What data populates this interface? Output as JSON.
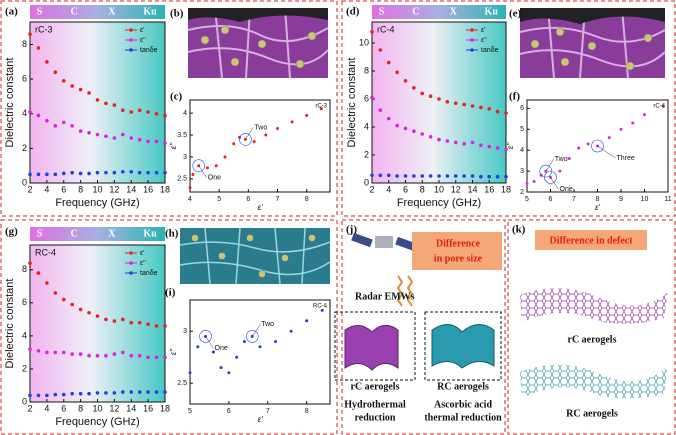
{
  "panels": {
    "a": "(a)",
    "b": "(b)",
    "c": "(c)",
    "d": "(d)",
    "e": "(e)",
    "f": "(f)",
    "g": "(g)",
    "h": "(h)",
    "i": "(i)",
    "j": "(j)",
    "k": "(k)"
  },
  "j": {
    "title": [
      "Difference",
      "in pore size"
    ],
    "radar": "Radar EMWs",
    "left": "rC aerogels",
    "right": "RC aerogels",
    "left_method": [
      "Hydrothermal",
      "reduction"
    ],
    "right_method": [
      "Ascorbic acid",
      "thermal reduction"
    ]
  },
  "k": {
    "title": "Difference in defect",
    "top": "rC aerogels",
    "bottom": "RC aerogels"
  },
  "chart_data": [
    {
      "type": "line",
      "label": "rC-3",
      "bands": [
        "S",
        "C",
        "X",
        "Ku"
      ],
      "x_label": "Frequency (GHz)",
      "y_label": "Dielectric constant",
      "x": [
        2,
        3,
        4,
        5,
        6,
        7,
        8,
        9,
        10,
        11,
        12,
        13,
        14,
        15,
        16,
        17,
        18
      ],
      "xlim": [
        2,
        18
      ],
      "xticks": [
        2,
        4,
        6,
        8,
        10,
        12,
        14,
        16,
        18
      ],
      "ylim": [
        0,
        9.3
      ],
      "yticks": [
        0,
        2,
        4,
        6,
        8
      ],
      "series": [
        {
          "name": "ε'",
          "color": "#e8221c",
          "values": [
            8.6,
            7.8,
            7.0,
            6.4,
            5.9,
            5.6,
            5.4,
            5.2,
            4.8,
            4.6,
            4.5,
            4.2,
            4.1,
            4.2,
            4.1,
            4.0,
            3.9
          ]
        },
        {
          "name": "ε''",
          "color": "#e020e0",
          "values": [
            4.1,
            3.9,
            3.6,
            3.3,
            3.5,
            3.3,
            3.0,
            2.9,
            2.8,
            2.7,
            2.6,
            2.8,
            2.6,
            2.5,
            2.4,
            2.4,
            2.3
          ]
        },
        {
          "name": "tanδe",
          "color": "#2040e0",
          "values": [
            0.5,
            0.5,
            0.5,
            0.5,
            0.55,
            0.6,
            0.55,
            0.55,
            0.6,
            0.6,
            0.6,
            0.65,
            0.65,
            0.6,
            0.6,
            0.6,
            0.6
          ]
        }
      ]
    },
    {
      "type": "scatter",
      "label": "rC-3",
      "x_label": "ε'",
      "y_label": "ε''",
      "annotations": [
        "One",
        "Two"
      ],
      "x": [
        4.0,
        4.1,
        4.3,
        4.6,
        4.9,
        5.2,
        5.5,
        5.7,
        5.9,
        6.2,
        6.6,
        7.0,
        7.5,
        8.0,
        8.5
      ],
      "xlim": [
        4,
        8.8
      ],
      "xticks": [
        4,
        5,
        6,
        7,
        8
      ],
      "ylim": [
        2.2,
        4.3
      ],
      "yticks": [
        2.5,
        3.0,
        3.5,
        4.0
      ],
      "series": [
        {
          "name": "rC-3",
          "color": "#e8221c",
          "values": [
            2.3,
            2.6,
            2.8,
            2.75,
            2.8,
            3.0,
            3.3,
            3.45,
            3.4,
            3.35,
            3.5,
            3.65,
            3.8,
            3.95,
            4.1
          ]
        }
      ]
    },
    {
      "type": "line",
      "label": "rC-4",
      "bands": [
        "S",
        "C",
        "X",
        "Ku"
      ],
      "x_label": "Frequency (GHz)",
      "y_label": "Dielectric constant",
      "x": [
        2,
        3,
        4,
        5,
        6,
        7,
        8,
        9,
        10,
        11,
        12,
        13,
        14,
        15,
        16,
        17,
        18
      ],
      "xlim": [
        2,
        18
      ],
      "xticks": [
        2,
        4,
        6,
        8,
        10,
        12,
        14,
        16,
        18
      ],
      "ylim": [
        0,
        11.5
      ],
      "yticks": [
        0,
        2,
        4,
        6,
        8,
        10
      ],
      "series": [
        {
          "name": "ε'",
          "color": "#e8221c",
          "values": [
            10.8,
            9.5,
            8.6,
            7.9,
            7.3,
            6.8,
            6.4,
            6.2,
            6.0,
            5.8,
            5.7,
            5.6,
            5.5,
            5.4,
            5.3,
            5.1,
            5.0
          ]
        },
        {
          "name": "ε''",
          "color": "#e020e0",
          "values": [
            6.1,
            5.2,
            4.6,
            4.1,
            3.9,
            3.7,
            3.5,
            3.3,
            3.1,
            3.0,
            2.9,
            2.8,
            2.9,
            2.7,
            2.6,
            2.5,
            2.4
          ]
        },
        {
          "name": "tanδe",
          "color": "#2040e0",
          "values": [
            0.55,
            0.55,
            0.55,
            0.5,
            0.5,
            0.5,
            0.5,
            0.5,
            0.5,
            0.5,
            0.5,
            0.5,
            0.5,
            0.45,
            0.45,
            0.45,
            0.45
          ]
        }
      ]
    },
    {
      "type": "scatter",
      "label": "rC-4",
      "x_label": "ε'",
      "y_label": "ε''",
      "annotations": [
        "One",
        "Two",
        "Three"
      ],
      "x": [
        5.0,
        5.3,
        5.6,
        5.8,
        6.0,
        6.4,
        6.8,
        7.2,
        7.6,
        8.0,
        8.5,
        9.0,
        9.5,
        10.0,
        10.8
      ],
      "xlim": [
        5,
        11
      ],
      "xticks": [
        5,
        6,
        7,
        8,
        9,
        10,
        11
      ],
      "ylim": [
        2,
        6.4
      ],
      "yticks": [
        2,
        3,
        4,
        5,
        6
      ],
      "series": [
        {
          "name": "rC-4",
          "color": "#d030d0",
          "values": [
            2.4,
            2.5,
            2.8,
            3.0,
            2.7,
            3.0,
            3.6,
            4.1,
            4.3,
            4.2,
            4.6,
            5.0,
            5.3,
            5.7,
            6.1
          ]
        }
      ]
    },
    {
      "type": "line",
      "label": "RC-4",
      "bands": [
        "S",
        "C",
        "X",
        "Ku"
      ],
      "x_label": "Frequency (GHz)",
      "y_label": "Dielectric constant",
      "x": [
        2,
        3,
        4,
        5,
        6,
        7,
        8,
        9,
        10,
        11,
        12,
        13,
        14,
        15,
        16,
        17,
        18
      ],
      "xlim": [
        2,
        18
      ],
      "xticks": [
        2,
        4,
        6,
        8,
        10,
        12,
        14,
        16,
        18
      ],
      "ylim": [
        0,
        9.5
      ],
      "yticks": [
        0,
        2,
        4,
        6,
        8
      ],
      "series": [
        {
          "name": "ε'",
          "color": "#e8221c",
          "values": [
            8.4,
            7.8,
            7.2,
            6.6,
            6.2,
            5.9,
            5.6,
            5.4,
            5.2,
            5.0,
            4.9,
            5.0,
            4.8,
            4.8,
            4.7,
            4.6,
            4.6
          ]
        },
        {
          "name": "ε''",
          "color": "#e020e0",
          "values": [
            3.2,
            3.1,
            3.0,
            3.0,
            3.0,
            2.9,
            2.9,
            2.8,
            2.8,
            2.8,
            2.9,
            3.0,
            2.8,
            2.8,
            2.7,
            2.7,
            2.7
          ]
        },
        {
          "name": "tanδe",
          "color": "#2040e0",
          "values": [
            0.4,
            0.4,
            0.4,
            0.45,
            0.45,
            0.5,
            0.5,
            0.5,
            0.55,
            0.55,
            0.55,
            0.6,
            0.6,
            0.6,
            0.6,
            0.6,
            0.6
          ]
        }
      ]
    },
    {
      "type": "scatter",
      "label": "RC-4",
      "x_label": "ε'",
      "y_label": "ε''",
      "annotations": [
        "One",
        "Two"
      ],
      "x": [
        5.0,
        5.2,
        5.4,
        5.6,
        5.8,
        6.0,
        6.2,
        6.4,
        6.6,
        6.8,
        7.2,
        7.6,
        8.0,
        8.4
      ],
      "xlim": [
        5,
        8.6
      ],
      "xticks": [
        5,
        6,
        7,
        8
      ],
      "ylim": [
        2.3,
        3.3
      ],
      "yticks": [
        2.5,
        3.0
      ],
      "series": [
        {
          "name": "RC-4",
          "color": "#2040e0",
          "values": [
            2.6,
            2.85,
            2.95,
            2.8,
            2.65,
            2.6,
            2.75,
            2.9,
            2.95,
            2.85,
            2.9,
            3.0,
            3.1,
            3.2
          ]
        }
      ]
    }
  ]
}
